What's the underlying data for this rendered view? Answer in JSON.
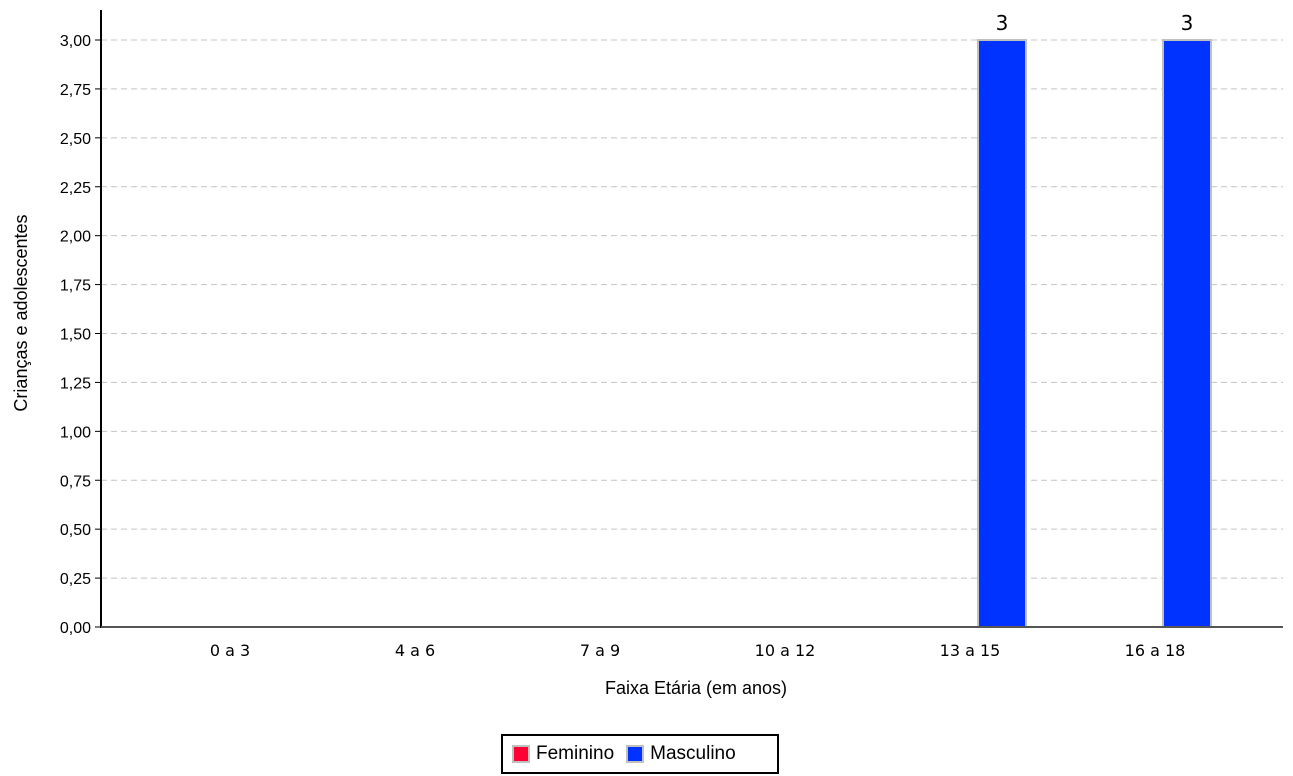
{
  "chart_data": {
    "type": "bar",
    "title": "",
    "xlabel": "Faixa Etária (em anos)",
    "ylabel": "Crianças e adolescentes",
    "categories": [
      "0 a 3",
      "4 a 6",
      "7 a 9",
      "10 a 12",
      "13 a 15",
      "16 a 18"
    ],
    "series": [
      {
        "name": "Feminino",
        "color": "#ff0033",
        "values": [
          0,
          0,
          0,
          0,
          0,
          0
        ]
      },
      {
        "name": "Masculino",
        "color": "#0033ff",
        "values": [
          0,
          0,
          0,
          0,
          3,
          3
        ]
      }
    ],
    "data_labels": [
      "",
      "",
      "",
      "",
      "3",
      "3"
    ],
    "ylim": [
      0,
      3
    ],
    "yticks": [
      "0,00",
      "0,25",
      "0,50",
      "0,75",
      "1,00",
      "1,25",
      "1,50",
      "1,75",
      "2,00",
      "2,25",
      "2,50",
      "2,75",
      "3,00"
    ],
    "grid": true,
    "legend_position": "bottom"
  }
}
